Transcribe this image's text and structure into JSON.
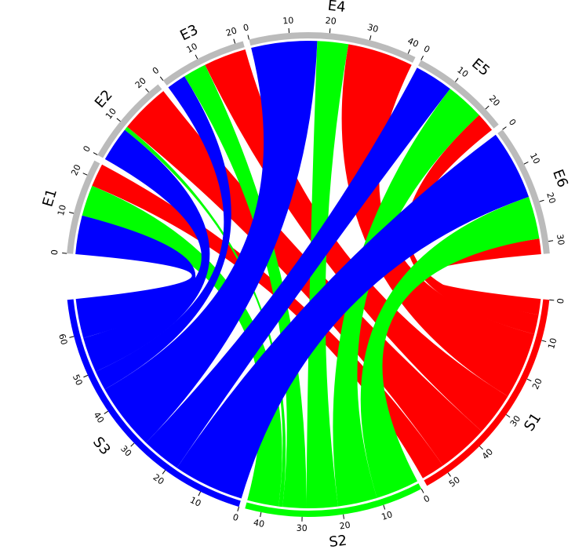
{
  "chart_data": {
    "type": "chord",
    "sources": [
      {
        "name": "S1",
        "color": "#ff0000",
        "ticks": [
          0,
          10,
          20,
          30,
          40,
          50
        ],
        "values": [
          6,
          13,
          11,
          17,
          5,
          4
        ]
      },
      {
        "name": "S2",
        "color": "#00ff00",
        "ticks": [
          0,
          10,
          20,
          30,
          40
        ],
        "values": [
          8,
          1,
          6,
          8,
          10,
          11
        ]
      },
      {
        "name": "S3",
        "color": "#0000ff",
        "ticks": [
          0,
          10,
          20,
          30,
          40,
          50,
          60
        ],
        "values": [
          10,
          9,
          5,
          17,
          10,
          18
        ]
      }
    ],
    "targets": [
      {
        "name": "E1",
        "ticks": [
          0,
          10,
          20
        ]
      },
      {
        "name": "E2",
        "ticks": [
          0,
          10,
          20
        ]
      },
      {
        "name": "E3",
        "ticks": [
          0,
          10,
          20
        ]
      },
      {
        "name": "E4",
        "ticks": [
          0,
          10,
          20,
          30,
          40
        ]
      },
      {
        "name": "E5",
        "ticks": [
          0,
          10,
          20
        ]
      },
      {
        "name": "E6",
        "ticks": [
          0,
          10,
          20,
          30
        ]
      }
    ],
    "target_color": "#bbbbbb"
  }
}
